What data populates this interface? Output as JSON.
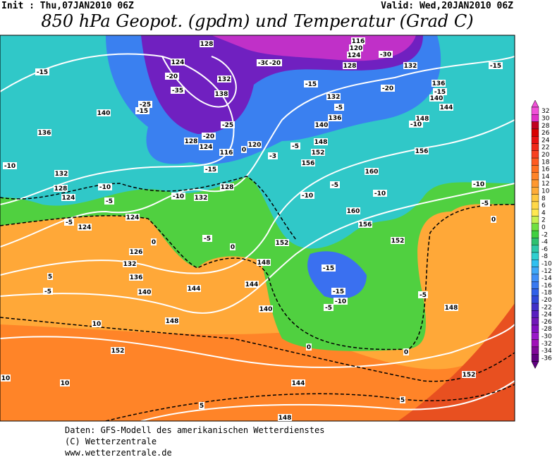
{
  "header": {
    "init": "Init : Thu,07JAN2010 06Z",
    "valid": "Valid: Wed,20JAN2010 06Z",
    "title": "850 hPa Geopot. (gpdm) und Temperatur (Grad C)"
  },
  "colorbar": {
    "levels": [
      32,
      30,
      28,
      26,
      24,
      22,
      20,
      18,
      16,
      14,
      12,
      10,
      8,
      6,
      4,
      2,
      0,
      -2,
      -4,
      -6,
      -8,
      -10,
      -12,
      -14,
      -16,
      -18,
      -20,
      -22,
      -24,
      -26,
      -28,
      -30,
      -32,
      -34,
      -36
    ],
    "colors": [
      "#f050d8",
      "#e030c8",
      "#c00020",
      "#d80000",
      "#e81010",
      "#f02818",
      "#f84020",
      "#ff5a20",
      "#ff7020",
      "#ff8428",
      "#ff9830",
      "#ffac38",
      "#ffc840",
      "#ffd848",
      "#ffe850",
      "#c8f050",
      "#70e040",
      "#40d040",
      "#30c070",
      "#30c8a8",
      "#30d0d0",
      "#30c0f0",
      "#40a8f8",
      "#4090f8",
      "#3878f0",
      "#3060e8",
      "#3048d8",
      "#4030c8",
      "#5820c0",
      "#7018b8",
      "#8010c0",
      "#9818c8",
      "#a010b8",
      "#800898",
      "#600080"
    ]
  },
  "contour_labels": [
    128,
    -15,
    124,
    -20,
    -35,
    132,
    138,
    -25,
    -15,
    140,
    136,
    -25,
    -20,
    128,
    124,
    120,
    116,
    0,
    -10,
    -15,
    132,
    128,
    -10,
    124,
    -5,
    -10,
    132,
    128,
    124,
    -5,
    124,
    126,
    132,
    136,
    140,
    144,
    144,
    148,
    140,
    148,
    152,
    0,
    -5,
    -30,
    -20,
    116,
    120,
    124,
    -30,
    128,
    132,
    -15,
    -15,
    132,
    -20,
    136,
    -15,
    140,
    144,
    148,
    -10,
    -5,
    136,
    140,
    148,
    -5,
    152,
    156,
    156,
    160,
    -3,
    -10,
    -10,
    -10,
    -5,
    -5,
    0,
    160,
    156,
    152,
    -15,
    -15,
    -10,
    -5,
    -5,
    148,
    0,
    0,
    152,
    152,
    144,
    148,
    5,
    5,
    10,
    10,
    10,
    5,
    -5,
    0
  ],
  "footer": [
    "Daten: GFS-Modell des amerikanischen Wetterdienstes",
    "(C) Wetterzentrale",
    "www.wetterzentrale.de"
  ]
}
